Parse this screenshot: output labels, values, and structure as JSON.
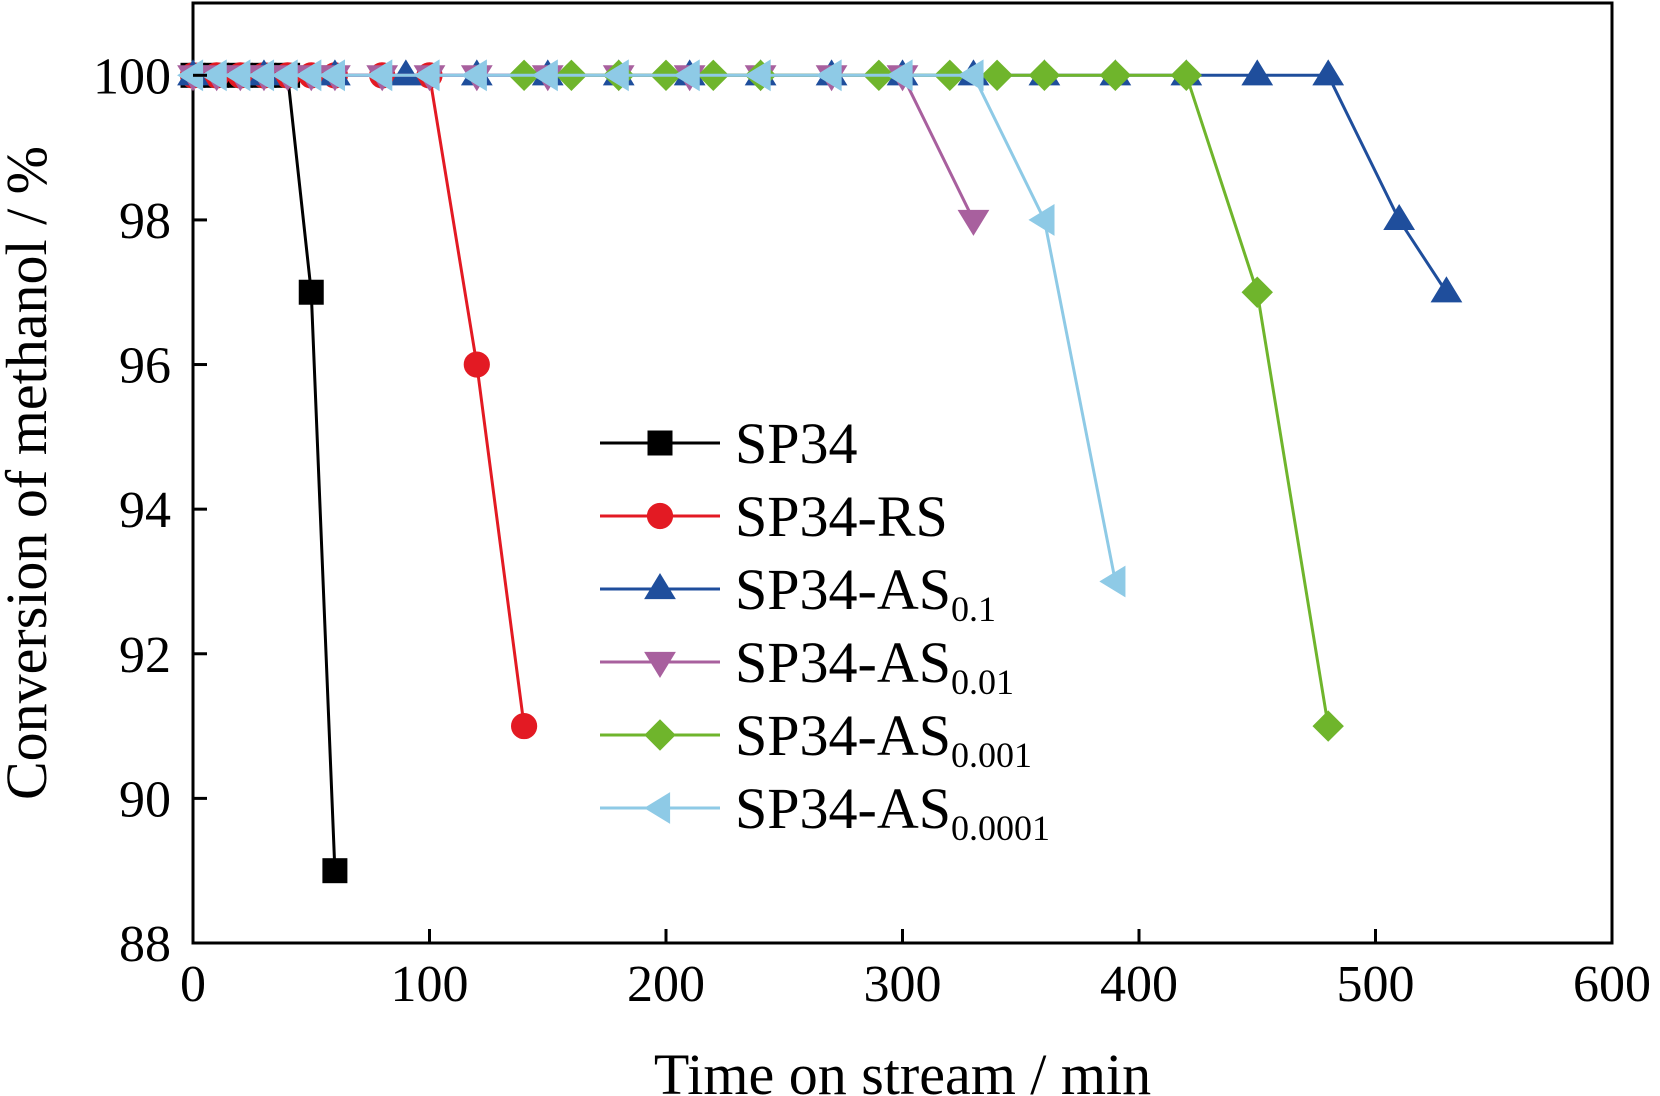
{
  "chart_data": {
    "type": "line",
    "xlabel": "Time on stream / min",
    "ylabel": "Conversion of methanol / %",
    "xlim": [
      0,
      600
    ],
    "ylim": [
      88,
      101
    ],
    "xticks": [
      0,
      100,
      200,
      300,
      400,
      500,
      600
    ],
    "yticks": [
      88,
      90,
      92,
      94,
      96,
      98,
      100
    ],
    "xtick_labels": [
      "0",
      "100",
      "200",
      "300",
      "400",
      "500",
      "600"
    ],
    "ytick_labels": [
      "88",
      "90",
      "92",
      "94",
      "96",
      "98",
      "100"
    ],
    "grid": false,
    "legend_position": "center",
    "series": [
      {
        "name": "SP34",
        "label_main": "SP34",
        "label_sub": "",
        "color": "#000000",
        "marker": "square",
        "x": [
          0,
          10,
          20,
          30,
          40,
          50,
          60
        ],
        "y": [
          100,
          100,
          100,
          100,
          100,
          97,
          89
        ]
      },
      {
        "name": "SP34-RS",
        "label_main": "SP34-RS",
        "label_sub": "",
        "color": "#e31a23",
        "marker": "circle",
        "x": [
          0,
          10,
          20,
          30,
          40,
          50,
          60,
          80,
          100,
          120,
          140
        ],
        "y": [
          100,
          100,
          100,
          100,
          100,
          100,
          100,
          100,
          100,
          96,
          91
        ]
      },
      {
        "name": "SP34-AS0.1",
        "label_main": "SP34-AS",
        "label_sub": "0.1",
        "color": "#1f4e9c",
        "marker": "triangle-up",
        "x": [
          0,
          30,
          60,
          90,
          120,
          150,
          180,
          210,
          240,
          270,
          300,
          330,
          360,
          390,
          420,
          450,
          480,
          510,
          530
        ],
        "y": [
          100,
          100,
          100,
          100,
          100,
          100,
          100,
          100,
          100,
          100,
          100,
          100,
          100,
          100,
          100,
          100,
          100,
          98,
          97
        ]
      },
      {
        "name": "SP34-AS0.01",
        "label_main": "SP34-AS",
        "label_sub": "0.01",
        "color": "#a8609e",
        "marker": "triangle-down",
        "x": [
          0,
          10,
          20,
          30,
          40,
          50,
          60,
          80,
          100,
          120,
          150,
          180,
          210,
          240,
          270,
          300,
          330
        ],
        "y": [
          100,
          100,
          100,
          100,
          100,
          100,
          100,
          100,
          100,
          100,
          100,
          100,
          100,
          100,
          100,
          100,
          98
        ]
      },
      {
        "name": "SP34-AS0.001",
        "label_main": "SP34-AS",
        "label_sub": "0.001",
        "color": "#6fb52c",
        "marker": "diamond",
        "x": [
          140,
          160,
          180,
          200,
          220,
          240,
          290,
          320,
          340,
          360,
          390,
          420,
          450,
          480
        ],
        "y": [
          100,
          100,
          100,
          100,
          100,
          100,
          100,
          100,
          100,
          100,
          100,
          100,
          97,
          91
        ]
      },
      {
        "name": "SP34-AS0.0001",
        "label_main": "SP34-AS",
        "label_sub": "0.0001",
        "color": "#8ecae6",
        "marker": "triangle-left",
        "x": [
          0,
          10,
          20,
          30,
          40,
          50,
          60,
          80,
          100,
          120,
          150,
          180,
          210,
          240,
          270,
          300,
          330,
          360,
          390
        ],
        "y": [
          100,
          100,
          100,
          100,
          100,
          100,
          100,
          100,
          100,
          100,
          100,
          100,
          100,
          100,
          100,
          100,
          100,
          98,
          93
        ]
      }
    ]
  }
}
